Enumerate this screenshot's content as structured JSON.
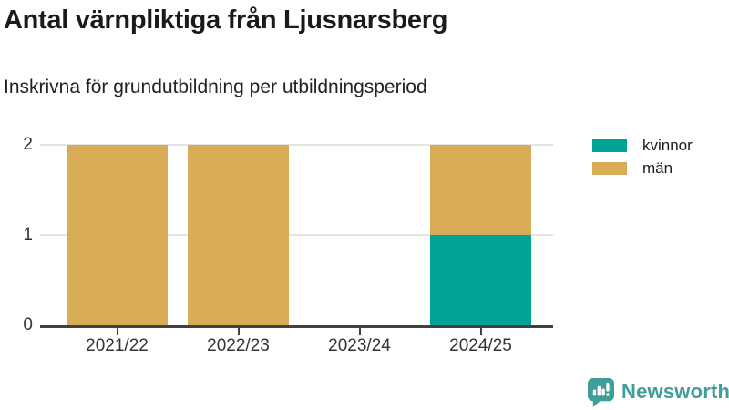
{
  "header": {
    "title": "Antal värnpliktiga från Ljusnarsberg",
    "subtitle": "Inskrivna för grundutbildning per utbildningsperiod"
  },
  "chart_data": {
    "type": "bar",
    "stacked": true,
    "title": "Antal värnpliktiga från Ljusnarsberg",
    "subtitle": "Inskrivna för grundutbildning per utbildningsperiod",
    "categories": [
      "2021/22",
      "2022/23",
      "2023/24",
      "2024/25"
    ],
    "series": [
      {
        "name": "kvinnor",
        "color": "#00a496",
        "values": [
          0,
          0,
          0,
          1
        ]
      },
      {
        "name": "män",
        "color": "#d8ab57",
        "values": [
          2,
          2,
          0,
          1
        ]
      }
    ],
    "xlabel": "",
    "ylabel": "",
    "ylim": [
      0,
      2
    ],
    "yticks": [
      0,
      1,
      2
    ],
    "grid": "horizontal",
    "legend_position": "top-right"
  },
  "footer": {
    "brand": "Newsworthy",
    "brand_color": "#3f9e99"
  }
}
